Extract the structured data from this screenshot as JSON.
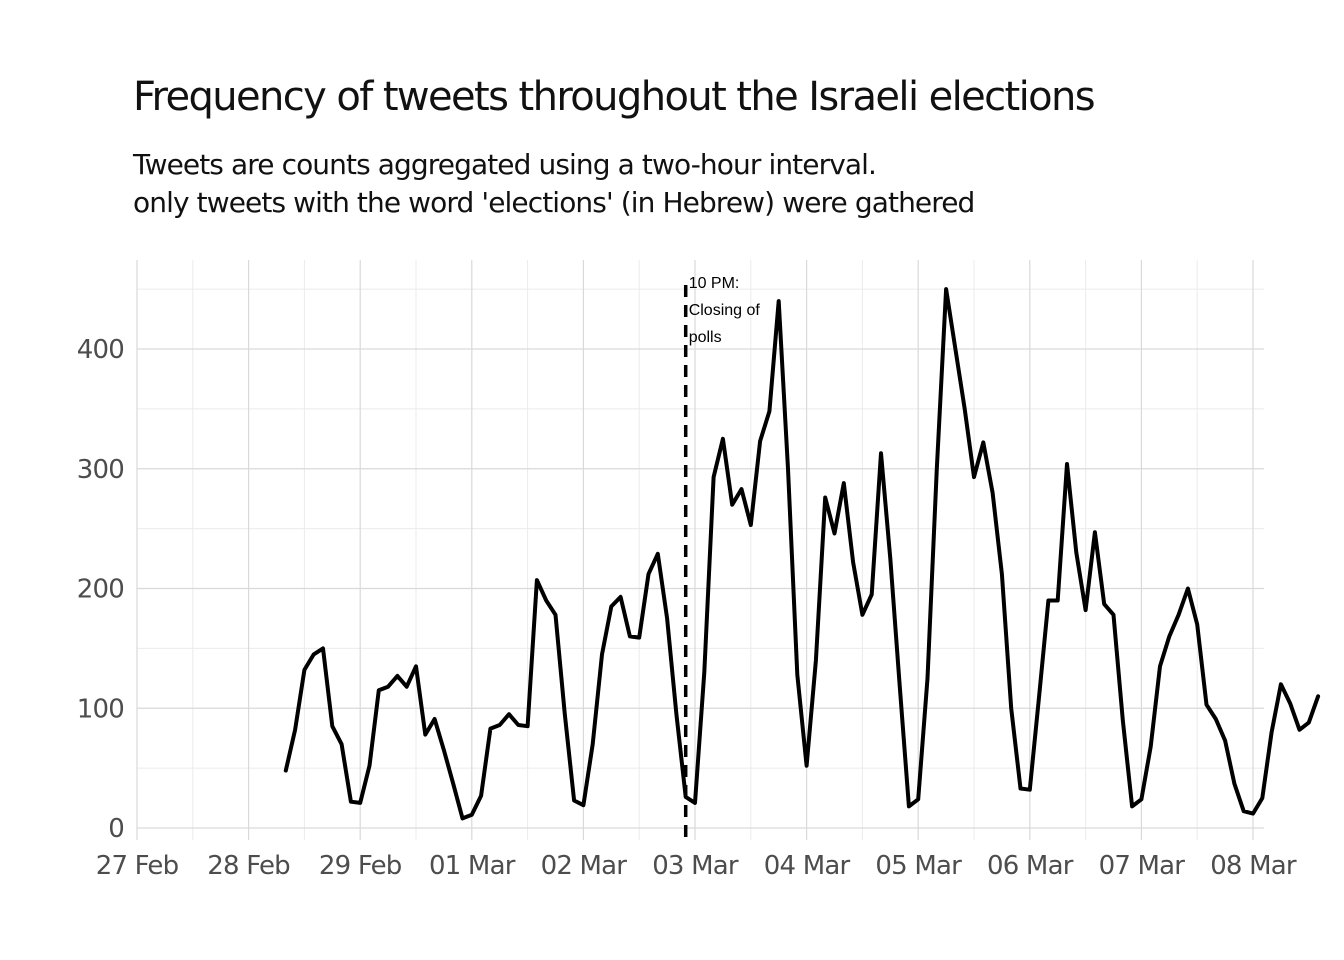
{
  "title": "Frequency of tweets throughout the Israeli elections",
  "subtitle_lines": [
    "Tweets are counts aggregated using a two-hour interval.",
    "only tweets with the word 'elections' (in Hebrew) were gathered"
  ],
  "chart_data": {
    "type": "line",
    "title": "Frequency of tweets throughout the Israeli elections",
    "subtitle": "Tweets are counts aggregated using a two-hour interval. only tweets with the word 'elections' (in Hebrew) were gathered",
    "xlabel": "",
    "ylabel": "",
    "x_interval_hours": 2,
    "x_start": "28 Feb 2020 08:00",
    "ylim": [
      0,
      450
    ],
    "x_tick_labels": [
      "27 Feb",
      "28 Feb",
      "29 Feb",
      "01 Mar",
      "02 Mar",
      "03 Mar",
      "04 Mar",
      "05 Mar",
      "06 Mar",
      "07 Mar",
      "08 Mar"
    ],
    "y_ticks": [
      0,
      100,
      200,
      300,
      400
    ],
    "grid": true,
    "line_color": "#000000",
    "values": [
      48,
      82,
      132,
      145,
      150,
      85,
      70,
      22,
      21,
      52,
      115,
      118,
      127,
      118,
      135,
      78,
      91,
      65,
      37,
      8,
      11,
      27,
      83,
      86,
      95,
      86,
      85,
      207,
      190,
      178,
      95,
      23,
      19,
      70,
      145,
      185,
      193,
      160,
      159,
      212,
      229,
      175,
      95,
      26,
      21,
      130,
      293,
      325,
      270,
      283,
      253,
      323,
      348,
      440,
      300,
      128,
      52,
      140,
      276,
      246,
      288,
      222,
      178,
      195,
      313,
      225,
      120,
      18,
      24,
      125,
      300,
      450,
      400,
      350,
      293,
      322,
      280,
      212,
      100,
      33,
      32,
      110,
      190,
      190,
      304,
      230,
      182,
      247,
      187,
      178,
      90,
      18,
      24,
      68,
      135,
      160,
      178,
      200,
      170,
      103,
      91,
      73,
      37,
      14,
      12,
      25,
      80,
      120,
      104,
      82,
      88,
      110
    ],
    "annotation": {
      "x": "02 Mar 2020 22:00",
      "lines": [
        "10 PM:",
        "Closing of",
        "polls"
      ],
      "line_style": "dashed"
    }
  }
}
